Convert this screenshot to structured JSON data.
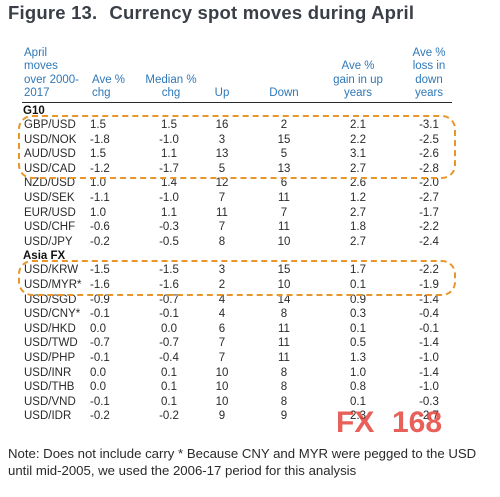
{
  "title": {
    "figure_label": "Figure 13.",
    "text": "Currency spot moves during April"
  },
  "headers": {
    "col0": [
      "April",
      "moves",
      "over 2000-",
      "2017"
    ],
    "col1": [
      "Ave %",
      "chg"
    ],
    "col2": [
      "Median %",
      "chg"
    ],
    "col3": [
      "Up"
    ],
    "col4": [
      "Down"
    ],
    "col5": [
      "Ave %",
      "gain in up",
      "years"
    ],
    "col6": [
      "Ave %",
      "loss in",
      "down",
      "years"
    ]
  },
  "sections": [
    {
      "name": "G10",
      "rows": [
        {
          "pair": "GBP/USD",
          "ave": "1.5",
          "median": "1.5",
          "up": "16",
          "down": "2",
          "gain": "2.1",
          "loss": "-3.1",
          "highlight": true
        },
        {
          "pair": "USD/NOK",
          "ave": "-1.8",
          "median": "-1.0",
          "up": "3",
          "down": "15",
          "gain": "2.2",
          "loss": "-2.5",
          "highlight": true
        },
        {
          "pair": "AUD/USD",
          "ave": "1.5",
          "median": "1.1",
          "up": "13",
          "down": "5",
          "gain": "3.1",
          "loss": "-2.6",
          "highlight": true
        },
        {
          "pair": "USD/CAD",
          "ave": "-1.2",
          "median": "-1.7",
          "up": "5",
          "down": "13",
          "gain": "2.7",
          "loss": "-2.8",
          "highlight": true
        },
        {
          "pair": "NZD/USD",
          "ave": "1.0",
          "median": "1.4",
          "up": "12",
          "down": "6",
          "gain": "2.6",
          "loss": "-2.0",
          "highlight": false
        },
        {
          "pair": "USD/SEK",
          "ave": "-1.1",
          "median": "-1.0",
          "up": "7",
          "down": "11",
          "gain": "1.2",
          "loss": "-2.7",
          "highlight": false
        },
        {
          "pair": "EUR/USD",
          "ave": "1.0",
          "median": "1.1",
          "up": "11",
          "down": "7",
          "gain": "2.7",
          "loss": "-1.7",
          "highlight": false
        },
        {
          "pair": "USD/CHF",
          "ave": "-0.6",
          "median": "-0.3",
          "up": "7",
          "down": "11",
          "gain": "1.8",
          "loss": "-2.2",
          "highlight": false
        },
        {
          "pair": "USD/JPY",
          "ave": "-0.2",
          "median": "-0.5",
          "up": "8",
          "down": "10",
          "gain": "2.7",
          "loss": "-2.4",
          "highlight": false
        }
      ]
    },
    {
      "name": "Asia FX",
      "rows": [
        {
          "pair": "USD/KRW",
          "ave": "-1.5",
          "median": "-1.5",
          "up": "3",
          "down": "15",
          "gain": "1.7",
          "loss": "-2.2",
          "highlight": true
        },
        {
          "pair": "USD/MYR*",
          "ave": "-1.6",
          "median": "-1.6",
          "up": "2",
          "down": "10",
          "gain": "0.1",
          "loss": "-1.9",
          "highlight": true
        },
        {
          "pair": "USD/SGD",
          "ave": "-0.9",
          "median": "-0.7",
          "up": "4",
          "down": "14",
          "gain": "0.9",
          "loss": "-1.4",
          "highlight": false
        },
        {
          "pair": "USD/CNY*",
          "ave": "-0.1",
          "median": "-0.1",
          "up": "4",
          "down": "8",
          "gain": "0.3",
          "loss": "-0.4",
          "highlight": false
        },
        {
          "pair": "USD/HKD",
          "ave": "0.0",
          "median": "0.0",
          "up": "6",
          "down": "11",
          "gain": "0.1",
          "loss": "-0.1",
          "highlight": false
        },
        {
          "pair": "USD/TWD",
          "ave": "-0.7",
          "median": "-0.7",
          "up": "7",
          "down": "11",
          "gain": "0.5",
          "loss": "-1.4",
          "highlight": false
        },
        {
          "pair": "USD/PHP",
          "ave": "-0.1",
          "median": "-0.4",
          "up": "7",
          "down": "11",
          "gain": "1.3",
          "loss": "-1.0",
          "highlight": false
        },
        {
          "pair": "USD/INR",
          "ave": "0.0",
          "median": "0.1",
          "up": "10",
          "down": "8",
          "gain": "1.0",
          "loss": "-1.4",
          "highlight": false
        },
        {
          "pair": "USD/THB",
          "ave": "0.0",
          "median": "0.1",
          "up": "10",
          "down": "8",
          "gain": "0.8",
          "loss": "-1.0",
          "highlight": false
        },
        {
          "pair": "USD/VND",
          "ave": "-0.1",
          "median": "0.1",
          "up": "10",
          "down": "8",
          "gain": "0.1",
          "loss": "-0.3",
          "highlight": false
        },
        {
          "pair": "USD/IDR",
          "ave": "-0.2",
          "median": "-0.2",
          "up": "9",
          "down": "9",
          "gain": "2.3",
          "loss": "-2.7",
          "highlight": false
        }
      ]
    }
  ],
  "note": "Note: Does not include carry * Because CNY and MYR were pegged to the USD until mid-2005, we used the 2006-17 period for this analysis",
  "watermark": {
    "text_fx": "FX",
    "text_num": "168"
  },
  "colors": {
    "header_text": "#2f78b8",
    "highlight_border": "#e8962a",
    "watermark_red": "#e2342b"
  }
}
